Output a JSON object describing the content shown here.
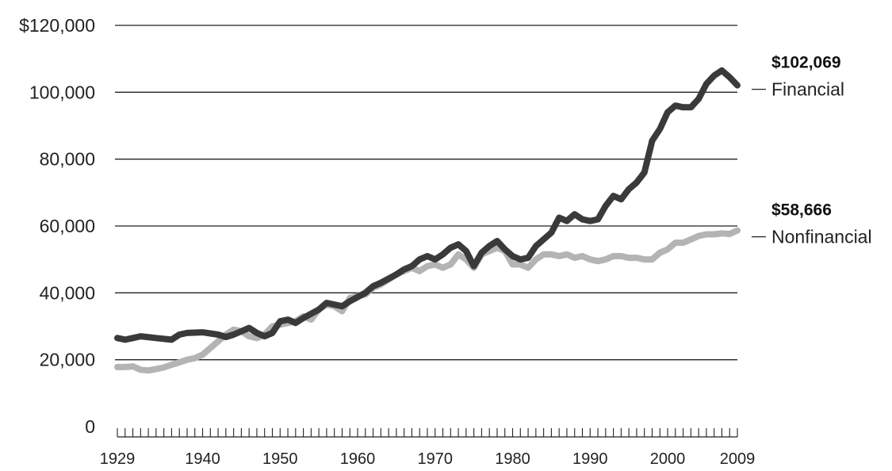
{
  "chart_data": {
    "type": "line",
    "title": "",
    "xlabel": "",
    "ylabel": "",
    "xlim": [
      1929,
      2009
    ],
    "ylim": [
      0,
      120000
    ],
    "grid": true,
    "y_ticks": [
      {
        "value": 0,
        "label": "0"
      },
      {
        "value": 20000,
        "label": "20,000"
      },
      {
        "value": 40000,
        "label": "40,000"
      },
      {
        "value": 60000,
        "label": "60,000"
      },
      {
        "value": 80000,
        "label": "80,000"
      },
      {
        "value": 100000,
        "label": "100,000"
      },
      {
        "value": 120000,
        "label": "$120,000"
      }
    ],
    "x_ticks": [
      {
        "value": 1929,
        "label": "1929"
      },
      {
        "value": 1940,
        "label": "1940"
      },
      {
        "value": 1950,
        "label": "1950"
      },
      {
        "value": 1960,
        "label": "1960"
      },
      {
        "value": 1970,
        "label": "1970"
      },
      {
        "value": 1980,
        "label": "1980"
      },
      {
        "value": 1990,
        "label": "1990"
      },
      {
        "value": 2000,
        "label": "2000"
      },
      {
        "value": 2009,
        "label": "2009"
      }
    ],
    "series": [
      {
        "name": "Financial",
        "end_label": "$102,069",
        "color": "#3a3a3a",
        "x": [
          1929,
          1930,
          1931,
          1932,
          1934,
          1936,
          1937,
          1938,
          1940,
          1942,
          1943,
          1944,
          1946,
          1947,
          1948,
          1949,
          1950,
          1951,
          1952,
          1953,
          1955,
          1956,
          1958,
          1959,
          1961,
          1962,
          1963,
          1965,
          1966,
          1967,
          1968,
          1969,
          1970,
          1971,
          1972,
          1973,
          1974,
          1975,
          1976,
          1977,
          1978,
          1979,
          1980,
          1981,
          1982,
          1983,
          1984,
          1985,
          1986,
          1987,
          1988,
          1989,
          1990,
          1991,
          1992,
          1993,
          1994,
          1995,
          1996,
          1997,
          1998,
          1999,
          2000,
          2001,
          2002,
          2003,
          2004,
          2005,
          2006,
          2007,
          2008,
          2009
        ],
        "y": [
          26500,
          26000,
          26500,
          27000,
          26500,
          26000,
          27500,
          28000,
          28200,
          27500,
          26800,
          27500,
          29500,
          28000,
          27000,
          28000,
          31500,
          32000,
          31000,
          32500,
          35000,
          37000,
          36000,
          37500,
          40000,
          42000,
          43000,
          45500,
          47000,
          48000,
          50000,
          51000,
          50000,
          51500,
          53500,
          54500,
          52500,
          48000,
          52000,
          54000,
          55500,
          53000,
          51000,
          50000,
          50500,
          54000,
          56000,
          58000,
          62500,
          61500,
          63500,
          62000,
          61500,
          62000,
          66000,
          69000,
          68000,
          71000,
          73000,
          76000,
          85500,
          89000,
          94000,
          96000,
          95500,
          95500,
          98000,
          102500,
          105000,
          106500,
          104500,
          102069
        ]
      },
      {
        "name": "Nonfinancial",
        "end_label": "$58,666",
        "color": "#b4b4b4",
        "x": [
          1929,
          1930,
          1931,
          1932,
          1933,
          1934,
          1935,
          1936,
          1937,
          1938,
          1939,
          1940,
          1941,
          1942,
          1943,
          1944,
          1945,
          1946,
          1947,
          1948,
          1949,
          1950,
          1951,
          1952,
          1953,
          1954,
          1955,
          1956,
          1957,
          1958,
          1959,
          1960,
          1961,
          1962,
          1963,
          1964,
          1965,
          1966,
          1967,
          1968,
          1969,
          1970,
          1971,
          1972,
          1973,
          1974,
          1975,
          1976,
          1977,
          1978,
          1979,
          1980,
          1981,
          1982,
          1983,
          1984,
          1985,
          1986,
          1987,
          1988,
          1989,
          1990,
          1991,
          1992,
          1993,
          1994,
          1995,
          1996,
          1997,
          1998,
          1999,
          2000,
          2001,
          2002,
          2003,
          2004,
          2005,
          2006,
          2007,
          2008,
          2009
        ],
        "y": [
          17800,
          17800,
          18000,
          17000,
          16800,
          17200,
          17700,
          18500,
          19200,
          20000,
          20500,
          21500,
          23500,
          25500,
          27500,
          29000,
          28500,
          27000,
          26500,
          27500,
          30000,
          30500,
          31000,
          31500,
          33000,
          32000,
          35000,
          36500,
          36000,
          34500,
          38500,
          39000,
          39500,
          41500,
          42500,
          44000,
          45500,
          46500,
          47500,
          46500,
          48000,
          48500,
          47500,
          48500,
          51500,
          50000,
          47500,
          51500,
          52500,
          53500,
          52500,
          48500,
          48500,
          47500,
          50000,
          51500,
          51500,
          51000,
          51500,
          50500,
          51000,
          50000,
          49500,
          50000,
          51000,
          51000,
          50500,
          50500,
          50000,
          50000,
          52000,
          53000,
          55000,
          55000,
          56000,
          57000,
          57500,
          57500,
          57800,
          57600,
          58666
        ]
      }
    ]
  }
}
